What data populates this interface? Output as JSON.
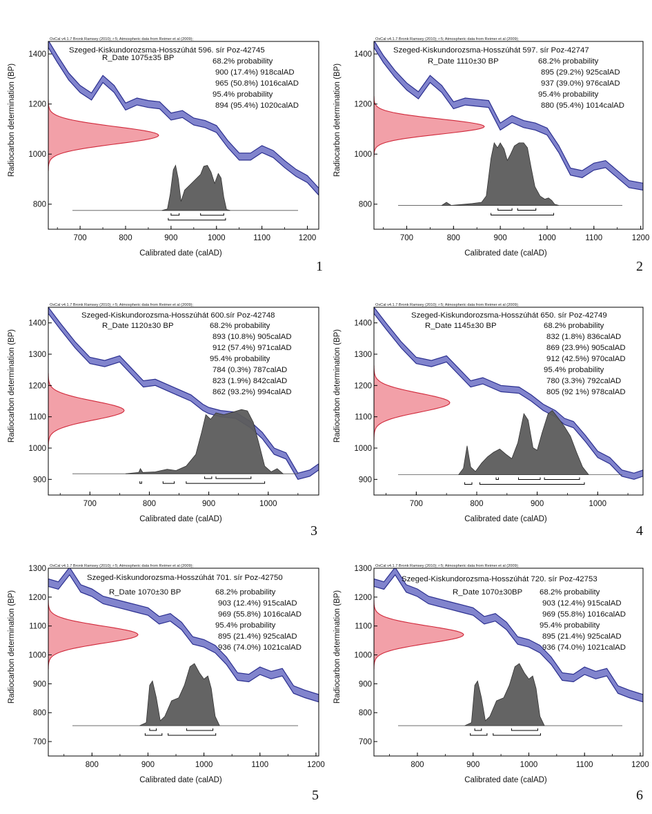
{
  "colors": {
    "curve": "#6b6fc4",
    "curve_edge": "#2b2f8f",
    "prior_fill": "#f2a0a8",
    "prior_edge": "#d0283a",
    "posterior": "#5c5c5c",
    "axis": "#000000"
  },
  "header_text": "OxCal v4.1.7 Bronk Ramsey (2010); r:5; Atmospheric data from Reimer et al (2009);",
  "x_axis_label": "Calibrated date (calAD)",
  "y_axis_label": "Radiocarbon determination (BP)",
  "chart_data": [
    {
      "type": "area",
      "panel_number": "1",
      "title": "Szeged-Kiskundorozsma-Hosszúhát 596. sír Poz-42745",
      "r_date": "R_Date 1075±35 BP",
      "prob_lines": [
        "68.2% probability",
        "900 (17.4%) 918calAD",
        "965 (50.8%) 1016calAD",
        "95.4% probability",
        "894 (95.4%) 1020calAD"
      ],
      "xlim": [
        630,
        1225
      ],
      "ylim": [
        700,
        1450
      ],
      "xticks": [
        700,
        800,
        900,
        1000,
        1100,
        1200
      ],
      "yticks": [
        800,
        1000,
        1200,
        1400
      ],
      "baseline": 775,
      "post_height": 180,
      "prior": {
        "mean": 1075,
        "sd": 35,
        "width": 160
      },
      "curve": {
        "x": [
          630,
          650,
          675,
          700,
          725,
          750,
          775,
          800,
          825,
          850,
          875,
          900,
          925,
          950,
          975,
          1000,
          1025,
          1050,
          1075,
          1100,
          1125,
          1150,
          1175,
          1200,
          1225
        ],
        "y": [
          1440,
          1380,
          1310,
          1260,
          1230,
          1300,
          1260,
          1190,
          1210,
          1200,
          1195,
          1150,
          1160,
          1130,
          1120,
          1100,
          1040,
          990,
          990,
          1020,
          1000,
          960,
          925,
          900,
          850
        ],
        "halfwidth": 14
      },
      "posterior": [
        [
          880,
          0
        ],
        [
          892,
          0.03
        ],
        [
          898,
          0.35
        ],
        [
          905,
          0.9
        ],
        [
          910,
          1.0
        ],
        [
          916,
          0.7
        ],
        [
          922,
          0.2
        ],
        [
          930,
          0.45
        ],
        [
          945,
          0.6
        ],
        [
          955,
          0.7
        ],
        [
          965,
          0.8
        ],
        [
          972,
          0.98
        ],
        [
          980,
          1.0
        ],
        [
          988,
          0.85
        ],
        [
          996,
          0.6
        ],
        [
          1004,
          0.82
        ],
        [
          1010,
          0.72
        ],
        [
          1016,
          0.3
        ],
        [
          1022,
          0.02
        ],
        [
          1030,
          0
        ]
      ],
      "ranges68": [
        [
          900,
          918
        ],
        [
          965,
          1016
        ]
      ],
      "ranges95": [
        [
          894,
          1020
        ]
      ]
    },
    {
      "type": "area",
      "panel_number": "2",
      "title": "Szeged-Kiskundorozsma-Hosszúhát 597. sír Poz-42747",
      "r_date": "R_Date 1110±30 BP",
      "prob_lines": [
        "68.2% probability",
        "895 (29.2%) 925calAD",
        "937 (39.0%) 976calAD",
        "95.4% probability",
        "880 (95.4%) 1014calAD"
      ],
      "xlim": [
        630,
        1205
      ],
      "ylim": [
        700,
        1450
      ],
      "xticks": [
        700,
        800,
        900,
        1000,
        1100,
        1200
      ],
      "yticks": [
        800,
        1000,
        1200,
        1400
      ],
      "baseline": 795,
      "post_height": 250,
      "prior": {
        "mean": 1110,
        "sd": 30,
        "width": 160
      },
      "curve": {
        "x": [
          630,
          650,
          675,
          700,
          725,
          750,
          775,
          800,
          825,
          850,
          875,
          900,
          925,
          950,
          975,
          1000,
          1025,
          1050,
          1075,
          1100,
          1125,
          1150,
          1175,
          1205
        ],
        "y": [
          1440,
          1380,
          1320,
          1270,
          1235,
          1300,
          1260,
          1195,
          1210,
          1205,
          1200,
          1110,
          1140,
          1120,
          1110,
          1090,
          1020,
          930,
          920,
          950,
          960,
          920,
          880,
          870
        ],
        "halfwidth": 14
      },
      "posterior": [
        [
          775,
          0
        ],
        [
          785,
          0.05
        ],
        [
          795,
          0
        ],
        [
          840,
          0.03
        ],
        [
          860,
          0.05
        ],
        [
          870,
          0.15
        ],
        [
          880,
          0.75
        ],
        [
          887,
          1.0
        ],
        [
          894,
          0.92
        ],
        [
          900,
          1.0
        ],
        [
          908,
          0.9
        ],
        [
          915,
          0.72
        ],
        [
          922,
          0.82
        ],
        [
          930,
          0.95
        ],
        [
          940,
          1.0
        ],
        [
          950,
          1.0
        ],
        [
          958,
          0.92
        ],
        [
          966,
          0.6
        ],
        [
          974,
          0.3
        ],
        [
          985,
          0.15
        ],
        [
          995,
          0.1
        ],
        [
          1003,
          0.12
        ],
        [
          1010,
          0.08
        ],
        [
          1016,
          0.02
        ],
        [
          1025,
          0
        ]
      ],
      "ranges68": [
        [
          895,
          925
        ],
        [
          937,
          976
        ]
      ],
      "ranges95": [
        [
          880,
          1014
        ]
      ]
    },
    {
      "type": "area",
      "panel_number": "3",
      "title": "Szeged-Kiskundorozsma-Hosszúhát 600.sír Poz-42748",
      "r_date": "R_Date 1120±30 BP",
      "prob_lines": [
        "68.2% probability",
        "893 (10.8%) 905calAD",
        "912 (57.4%) 971calAD",
        "95.4% probability",
        "784 (0.3%) 787calAD",
        "823 (1.9%) 842calAD",
        "862 (93.2%) 994calAD"
      ],
      "xlim": [
        630,
        1085
      ],
      "ylim": [
        850,
        1450
      ],
      "xticks": [
        700,
        800,
        900,
        1000
      ],
      "yticks": [
        900,
        1000,
        1100,
        1200,
        1300,
        1400
      ],
      "baseline": 918,
      "post_height": 205,
      "prior": {
        "mean": 1120,
        "sd": 30,
        "width": 110
      },
      "curve": {
        "x": [
          630,
          650,
          675,
          700,
          725,
          750,
          770,
          790,
          810,
          840,
          870,
          890,
          900,
          920,
          945,
          970,
          990,
          1010,
          1030,
          1050,
          1070,
          1085
        ],
        "y": [
          1440,
          1390,
          1330,
          1280,
          1270,
          1285,
          1245,
          1205,
          1210,
          1185,
          1160,
          1130,
          1120,
          1110,
          1105,
          1075,
          1040,
          990,
          975,
          910,
          920,
          940
        ],
        "halfwidth": 10
      },
      "posterior": [
        [
          760,
          0
        ],
        [
          782,
          0.02
        ],
        [
          785,
          0.08
        ],
        [
          789,
          0.02
        ],
        [
          810,
          0.03
        ],
        [
          830,
          0.07
        ],
        [
          845,
          0.05
        ],
        [
          862,
          0.12
        ],
        [
          878,
          0.3
        ],
        [
          888,
          0.65
        ],
        [
          895,
          0.92
        ],
        [
          903,
          0.85
        ],
        [
          912,
          0.95
        ],
        [
          925,
          0.92
        ],
        [
          940,
          0.96
        ],
        [
          955,
          1.0
        ],
        [
          965,
          0.98
        ],
        [
          975,
          0.8
        ],
        [
          985,
          0.45
        ],
        [
          994,
          0.12
        ],
        [
          1005,
          0.03
        ],
        [
          1015,
          0.08
        ],
        [
          1025,
          0
        ]
      ],
      "ranges68": [
        [
          893,
          905
        ],
        [
          912,
          971
        ]
      ],
      "ranges95": [
        [
          784,
          787
        ],
        [
          823,
          842
        ],
        [
          862,
          994
        ]
      ]
    },
    {
      "type": "area",
      "panel_number": "4",
      "title": "Szeged-Kiskundorozsma-Hosszúhát 650. sír Poz-42749",
      "r_date": "R_Date 1145±30 BP",
      "prob_lines": [
        "68.2% probability",
        "832 (1.8%) 836calAD",
        "869 (23.9%) 905calAD",
        "912 (42.5%) 970calAD",
        "95.4% probability",
        "780 (3.3%) 792calAD",
        "805 (92 1%) 978calAD"
      ],
      "xlim": [
        630,
        1075
      ],
      "ylim": [
        850,
        1450
      ],
      "xticks": [
        700,
        800,
        900,
        1000
      ],
      "yticks": [
        900,
        1000,
        1100,
        1200,
        1300,
        1400
      ],
      "baseline": 915,
      "post_height": 205,
      "prior": {
        "mean": 1145,
        "sd": 30,
        "width": 110
      },
      "curve": {
        "x": [
          630,
          650,
          675,
          700,
          725,
          750,
          770,
          790,
          810,
          840,
          870,
          890,
          910,
          930,
          945,
          960,
          980,
          1000,
          1020,
          1040,
          1060,
          1075
        ],
        "y": [
          1440,
          1390,
          1330,
          1280,
          1270,
          1285,
          1245,
          1205,
          1215,
          1190,
          1185,
          1160,
          1130,
          1110,
          1085,
          1075,
          1030,
          980,
          960,
          920,
          910,
          920
        ],
        "halfwidth": 10
      },
      "posterior": [
        [
          770,
          0
        ],
        [
          778,
          0.1
        ],
        [
          784,
          0.45
        ],
        [
          790,
          0.12
        ],
        [
          798,
          0.05
        ],
        [
          808,
          0.18
        ],
        [
          818,
          0.28
        ],
        [
          828,
          0.35
        ],
        [
          838,
          0.4
        ],
        [
          848,
          0.32
        ],
        [
          858,
          0.25
        ],
        [
          868,
          0.5
        ],
        [
          878,
          0.95
        ],
        [
          885,
          0.85
        ],
        [
          893,
          0.42
        ],
        [
          900,
          0.38
        ],
        [
          908,
          0.65
        ],
        [
          918,
          0.95
        ],
        [
          925,
          1.0
        ],
        [
          935,
          0.88
        ],
        [
          945,
          0.75
        ],
        [
          955,
          0.6
        ],
        [
          965,
          0.35
        ],
        [
          975,
          0.12
        ],
        [
          985,
          0
        ]
      ],
      "ranges68": [
        [
          832,
          836
        ],
        [
          869,
          905
        ],
        [
          912,
          970
        ]
      ],
      "ranges95": [
        [
          780,
          792
        ],
        [
          805,
          978
        ]
      ]
    },
    {
      "type": "area",
      "panel_number": "5",
      "title": "Szeged-Kiskundorozsma-Hosszúhát 701. sír Poz-42750",
      "r_date": "R_Date 1070±30 BP",
      "prob_lines": [
        "68.2% probability",
        "903 (12.4%) 915calAD",
        "969 (55.8%) 1016calAD",
        "95.4% probability",
        "895 (21.4%) 925calAD",
        "936 (74.0%) 1021calAD"
      ],
      "xlim": [
        722,
        1205
      ],
      "ylim": [
        650,
        1300
      ],
      "xticks": [
        800,
        900,
        1000,
        1100,
        1200
      ],
      "yticks": [
        700,
        800,
        900,
        1000,
        1100,
        1200,
        1300
      ],
      "baseline": 755,
      "post_height": 215,
      "prior": {
        "mean": 1070,
        "sd": 30,
        "width": 130
      },
      "curve": {
        "x": [
          722,
          740,
          760,
          780,
          800,
          820,
          840,
          860,
          880,
          900,
          920,
          940,
          960,
          980,
          1000,
          1020,
          1040,
          1060,
          1080,
          1100,
          1120,
          1140,
          1160,
          1180,
          1205
        ],
        "y": [
          1250,
          1240,
          1290,
          1230,
          1215,
          1190,
          1180,
          1170,
          1160,
          1150,
          1120,
          1130,
          1100,
          1050,
          1040,
          1020,
          980,
          925,
          920,
          945,
          930,
          940,
          880,
          865,
          850
        ],
        "halfwidth": 13
      },
      "posterior": [
        [
          885,
          0
        ],
        [
          897,
          0.05
        ],
        [
          903,
          0.65
        ],
        [
          908,
          0.72
        ],
        [
          915,
          0.45
        ],
        [
          922,
          0.08
        ],
        [
          930,
          0.15
        ],
        [
          942,
          0.4
        ],
        [
          955,
          0.45
        ],
        [
          965,
          0.65
        ],
        [
          975,
          0.95
        ],
        [
          983,
          1.0
        ],
        [
          992,
          0.85
        ],
        [
          1000,
          0.75
        ],
        [
          1007,
          0.8
        ],
        [
          1013,
          0.6
        ],
        [
          1020,
          0.15
        ],
        [
          1028,
          0
        ]
      ],
      "ranges68": [
        [
          903,
          915
        ],
        [
          969,
          1016
        ]
      ],
      "ranges95": [
        [
          895,
          925
        ],
        [
          936,
          1021
        ]
      ]
    },
    {
      "type": "area",
      "panel_number": "6",
      "title": "Szeged-Kiskundorozsma-Hosszúhát 720. sír Poz-42753",
      "r_date": "R_Date 1070±30BP",
      "prob_lines": [
        "68.2% probability",
        "903 (12.4%) 915calAD",
        "969 (55.8%) 1016calAD",
        "95.4% probability",
        "895 (21.4%) 925calAD",
        "936 (74.0%) 1021calAD"
      ],
      "xlim": [
        722,
        1205
      ],
      "ylim": [
        650,
        1300
      ],
      "xticks": [
        800,
        900,
        1000,
        1100,
        1200
      ],
      "yticks": [
        700,
        800,
        900,
        1000,
        1100,
        1200,
        1300
      ],
      "baseline": 755,
      "post_height": 215,
      "prior": {
        "mean": 1070,
        "sd": 30,
        "width": 130
      },
      "curve": {
        "x": [
          722,
          740,
          760,
          780,
          800,
          820,
          840,
          860,
          880,
          900,
          920,
          940,
          960,
          980,
          1000,
          1020,
          1040,
          1060,
          1080,
          1100,
          1120,
          1140,
          1160,
          1180,
          1205
        ],
        "y": [
          1250,
          1240,
          1290,
          1230,
          1215,
          1190,
          1180,
          1170,
          1160,
          1150,
          1120,
          1130,
          1100,
          1050,
          1040,
          1020,
          980,
          925,
          920,
          945,
          930,
          940,
          880,
          865,
          850
        ],
        "halfwidth": 13
      },
      "posterior": [
        [
          885,
          0
        ],
        [
          897,
          0.05
        ],
        [
          903,
          0.65
        ],
        [
          908,
          0.72
        ],
        [
          915,
          0.45
        ],
        [
          922,
          0.08
        ],
        [
          930,
          0.15
        ],
        [
          942,
          0.4
        ],
        [
          955,
          0.45
        ],
        [
          965,
          0.65
        ],
        [
          975,
          0.95
        ],
        [
          983,
          1.0
        ],
        [
          992,
          0.85
        ],
        [
          1000,
          0.75
        ],
        [
          1007,
          0.8
        ],
        [
          1013,
          0.6
        ],
        [
          1020,
          0.15
        ],
        [
          1028,
          0
        ]
      ],
      "ranges68": [
        [
          903,
          915
        ],
        [
          969,
          1016
        ]
      ],
      "ranges95": [
        [
          895,
          925
        ],
        [
          936,
          1021
        ]
      ]
    }
  ]
}
